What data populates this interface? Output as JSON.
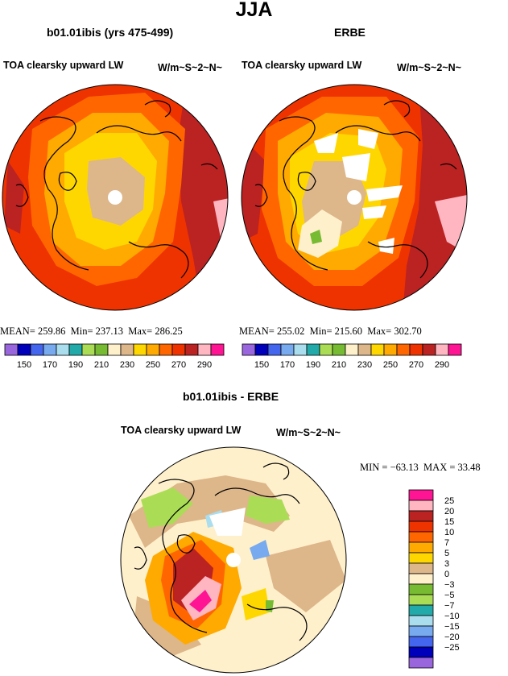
{
  "title": "JJA",
  "colors": {
    "hbar": [
      "#9966dd",
      "#0000bb",
      "#4466ee",
      "#77aaee",
      "#aaddee",
      "#22aaaa",
      "#aadd55",
      "#77bb33",
      "#fff0cc",
      "#ddb68a",
      "#ffd700",
      "#ffaa00",
      "#ff6600",
      "#ee3300",
      "#bb2222",
      "#ffb6c1",
      "#ff1493"
    ],
    "vbar": [
      "#ff1493",
      "#ffb6c1",
      "#bb2222",
      "#ee3300",
      "#ff6600",
      "#ffaa00",
      "#ffd700",
      "#ddb68a",
      "#fff0cc",
      "#77bb33",
      "#aadd55",
      "#22aaaa",
      "#aaddee",
      "#77aaee",
      "#4466ee",
      "#0000bb",
      "#9966dd"
    ]
  },
  "panels": {
    "model": {
      "title": "b01.01ibis (yrs 475-499)",
      "variable": "TOA clearsky upward LW",
      "units": "W/m~S~2~N~",
      "stats": {
        "mean_label": "MEAN=",
        "mean": "259.86",
        "min_label": "Min=",
        "min": "237.13",
        "max_label": "Max=",
        "max": "286.25"
      }
    },
    "obs": {
      "title": "ERBE",
      "variable": "TOA clearsky upward LW",
      "units": "W/m~S~2~N~",
      "stats": {
        "mean_label": "MEAN=",
        "mean": "255.02",
        "min_label": "Min=",
        "min": "215.60",
        "max_label": "Max=",
        "max": "302.70"
      }
    },
    "diff": {
      "title": "b01.01ibis - ERBE",
      "variable": "TOA clearsky upward LW",
      "units": "W/m~S~2~N~",
      "stats": {
        "min_label": "MIN =",
        "min": "−63.13",
        "max_label": "MAX =",
        "max": "33.48"
      }
    }
  },
  "colorbar_levels": [
    "150",
    "170",
    "190",
    "210",
    "230",
    "250",
    "270",
    "290"
  ],
  "diff_colorbar_levels": [
    "25",
    "20",
    "15",
    "10",
    "7",
    "5",
    "3",
    "0",
    "−3",
    "−5",
    "−7",
    "−10",
    "−15",
    "−20",
    "−25"
  ]
}
